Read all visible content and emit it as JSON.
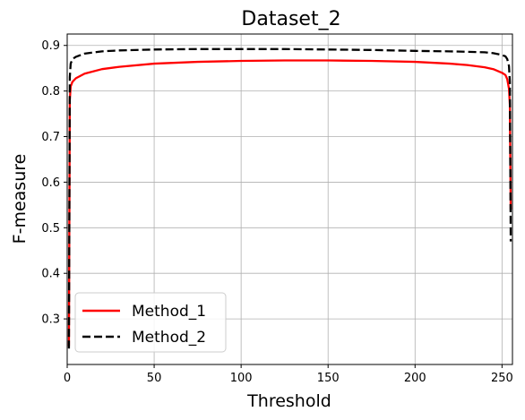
{
  "chart_data": {
    "type": "line",
    "title": "Dataset_2",
    "xlabel": "Threshold",
    "ylabel": "F-measure",
    "xlim": [
      0,
      256
    ],
    "ylim": [
      0.2,
      0.925
    ],
    "xticks": [
      0,
      50,
      100,
      150,
      200,
      250
    ],
    "yticks": [
      0.3,
      0.4,
      0.5,
      0.6,
      0.7,
      0.8,
      0.9
    ],
    "xtick_labels": [
      "0",
      "50",
      "100",
      "150",
      "200",
      "250"
    ],
    "ytick_labels": [
      "0.3",
      "0.4",
      "0.5",
      "0.6",
      "0.7",
      "0.8",
      "0.9"
    ],
    "grid": true,
    "legend_position": "lower-left",
    "series": [
      {
        "name": "Method_1",
        "color": "#ff0000",
        "linestyle": "solid",
        "x": [
          1,
          1.5,
          2,
          3,
          5,
          10,
          20,
          30,
          50,
          75,
          100,
          125,
          150,
          175,
          200,
          220,
          230,
          240,
          245,
          250,
          252,
          253,
          254,
          254.5,
          255
        ],
        "y": [
          0.24,
          0.78,
          0.81,
          0.82,
          0.828,
          0.838,
          0.848,
          0.853,
          0.86,
          0.864,
          0.866,
          0.867,
          0.867,
          0.866,
          0.864,
          0.86,
          0.857,
          0.852,
          0.848,
          0.84,
          0.835,
          0.826,
          0.805,
          0.77,
          0.54
        ]
      },
      {
        "name": "Method_2",
        "color": "#000000",
        "linestyle": "dashed",
        "x": [
          1,
          1.5,
          2,
          3,
          5,
          10,
          20,
          30,
          50,
          75,
          100,
          125,
          150,
          175,
          200,
          220,
          230,
          240,
          245,
          250,
          252,
          253,
          254,
          254.5,
          255
        ],
        "y": [
          0.235,
          0.83,
          0.86,
          0.87,
          0.875,
          0.882,
          0.887,
          0.889,
          0.891,
          0.892,
          0.892,
          0.892,
          0.891,
          0.89,
          0.888,
          0.887,
          0.886,
          0.885,
          0.883,
          0.879,
          0.876,
          0.87,
          0.855,
          0.82,
          0.47
        ]
      }
    ]
  }
}
